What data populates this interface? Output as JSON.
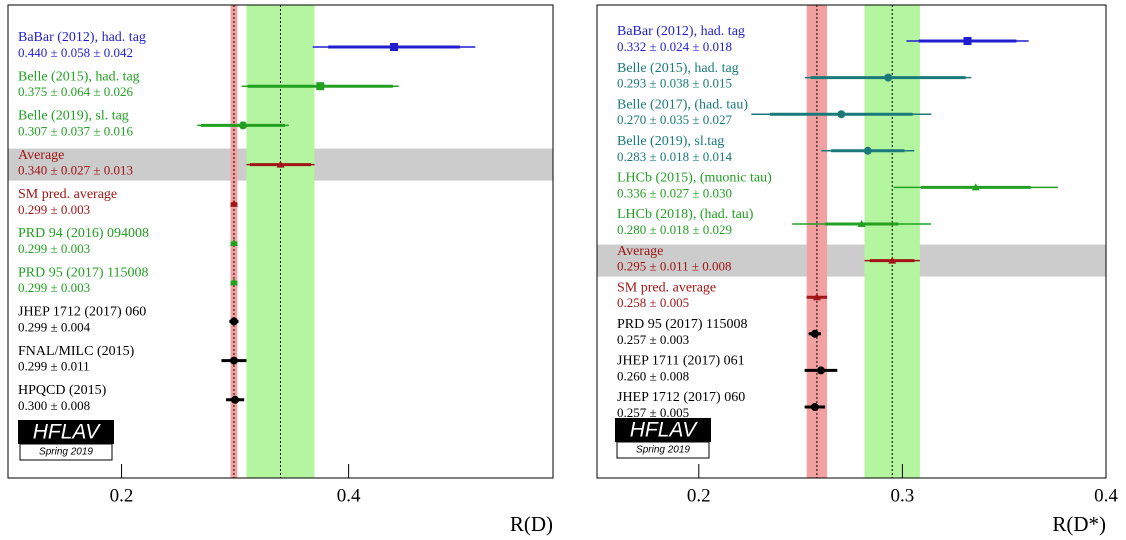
{
  "chart_data": [
    {
      "type": "forest",
      "x_label": "R(D)",
      "xlim": [
        0.1,
        0.58
      ],
      "xticks": [
        0.2,
        0.4
      ],
      "logo": "HFLAV",
      "logo_subtitle": "Spring 2019",
      "categories": [
        "BaBar (2012), had. tag",
        "Belle (2015), had. tag",
        "Belle (2019), sl. tag",
        "Average",
        "SM pred. average",
        "PRD 94 (2016) 094008",
        "PRD 95 (2017) 115008",
        "JHEP 1712 (2017) 060",
        "FNAL/MILC (2015)",
        "HPQCD (2015)"
      ],
      "values": [
        0.44,
        0.375,
        0.307,
        0.34,
        0.299,
        0.299,
        0.299,
        0.299,
        0.299,
        0.3
      ],
      "errors_stat": [
        0.058,
        0.064,
        0.037,
        0.027,
        0.003,
        0.003,
        0.003,
        0.004,
        0.011,
        0.008
      ],
      "errors_syst": [
        0.042,
        0.026,
        0.016,
        0.013,
        null,
        null,
        null,
        null,
        null,
        null
      ],
      "value_labels": [
        "0.440 ± 0.058 ± 0.042",
        "0.375 ± 0.064 ± 0.026",
        "0.307 ± 0.037 ± 0.016",
        "0.340 ± 0.027 ± 0.013",
        "0.299 ± 0.003",
        "0.299 ± 0.003",
        "0.299 ± 0.003",
        "0.299 ± 0.004",
        "0.299 ± 0.011",
        "0.300 ± 0.008"
      ],
      "colors": [
        "#1f1fd0",
        "#22a022",
        "#22a022",
        "#a01515",
        "#a01515",
        "#22a022",
        "#22a022",
        "#000000",
        "#000000",
        "#000000"
      ],
      "markers": [
        "square",
        "square",
        "circle",
        "triangle",
        "triangle",
        "triangle",
        "triangle",
        "circle",
        "circle",
        "circle"
      ],
      "row_shading": [
        null,
        null,
        null,
        "#cccccc",
        null,
        null,
        null,
        null,
        null,
        null
      ],
      "vertical_bands": [
        null,
        null,
        null,
        "#b4f5a0",
        "#f2a0a0",
        null,
        null,
        null,
        null,
        null
      ]
    },
    {
      "type": "forest",
      "x_label": "R(D*)",
      "xlim": [
        0.15,
        0.4
      ],
      "xticks": [
        0.2,
        0.3,
        0.4
      ],
      "logo": "HFLAV",
      "logo_subtitle": "Spring 2019",
      "categories": [
        "BaBar (2012), had. tag",
        "Belle (2015), had. tag",
        "Belle (2017), (had. tau)",
        "Belle (2019), sl.tag",
        "LHCb (2015), (muonic tau)",
        "LHCb (2018), (had. tau)",
        "Average",
        "SM pred. average",
        "PRD 95 (2017) 115008",
        "JHEP 1711 (2017) 061",
        "JHEP 1712 (2017) 060"
      ],
      "values": [
        0.332,
        0.293,
        0.27,
        0.283,
        0.336,
        0.28,
        0.295,
        0.258,
        0.257,
        0.26,
        0.257
      ],
      "errors_stat": [
        0.024,
        0.038,
        0.035,
        0.018,
        0.027,
        0.018,
        0.011,
        0.005,
        0.003,
        0.008,
        0.005
      ],
      "errors_syst": [
        0.018,
        0.015,
        0.027,
        0.014,
        0.03,
        0.029,
        0.008,
        null,
        null,
        null,
        null
      ],
      "value_labels": [
        "0.332 ± 0.024 ± 0.018",
        "0.293 ± 0.038 ± 0.015",
        "0.270 ± 0.035 ± 0.027",
        "0.283 ± 0.018 ± 0.014",
        "0.336 ± 0.027 ± 0.030",
        "0.280 ± 0.018 ± 0.029",
        "0.295 ± 0.011 ± 0.008",
        "0.258 ± 0.005",
        "0.257 ± 0.003",
        "0.260 ± 0.008",
        "0.257 ± 0.005"
      ],
      "colors": [
        "#1f1fd0",
        "#1a7a7a",
        "#1a7a7a",
        "#1a7a7a",
        "#22a022",
        "#22a022",
        "#a01515",
        "#a01515",
        "#000000",
        "#000000",
        "#000000"
      ],
      "markers": [
        "square",
        "circle",
        "circle",
        "circle",
        "triangle",
        "triangle",
        "triangle",
        "triangle",
        "circle",
        "circle",
        "circle"
      ],
      "row_shading": [
        null,
        null,
        null,
        null,
        null,
        null,
        "#cccccc",
        null,
        null,
        null,
        null
      ],
      "vertical_bands": [
        null,
        null,
        null,
        null,
        null,
        null,
        "#b4f5a0",
        "#f2a0a0",
        null,
        null,
        null
      ]
    }
  ]
}
